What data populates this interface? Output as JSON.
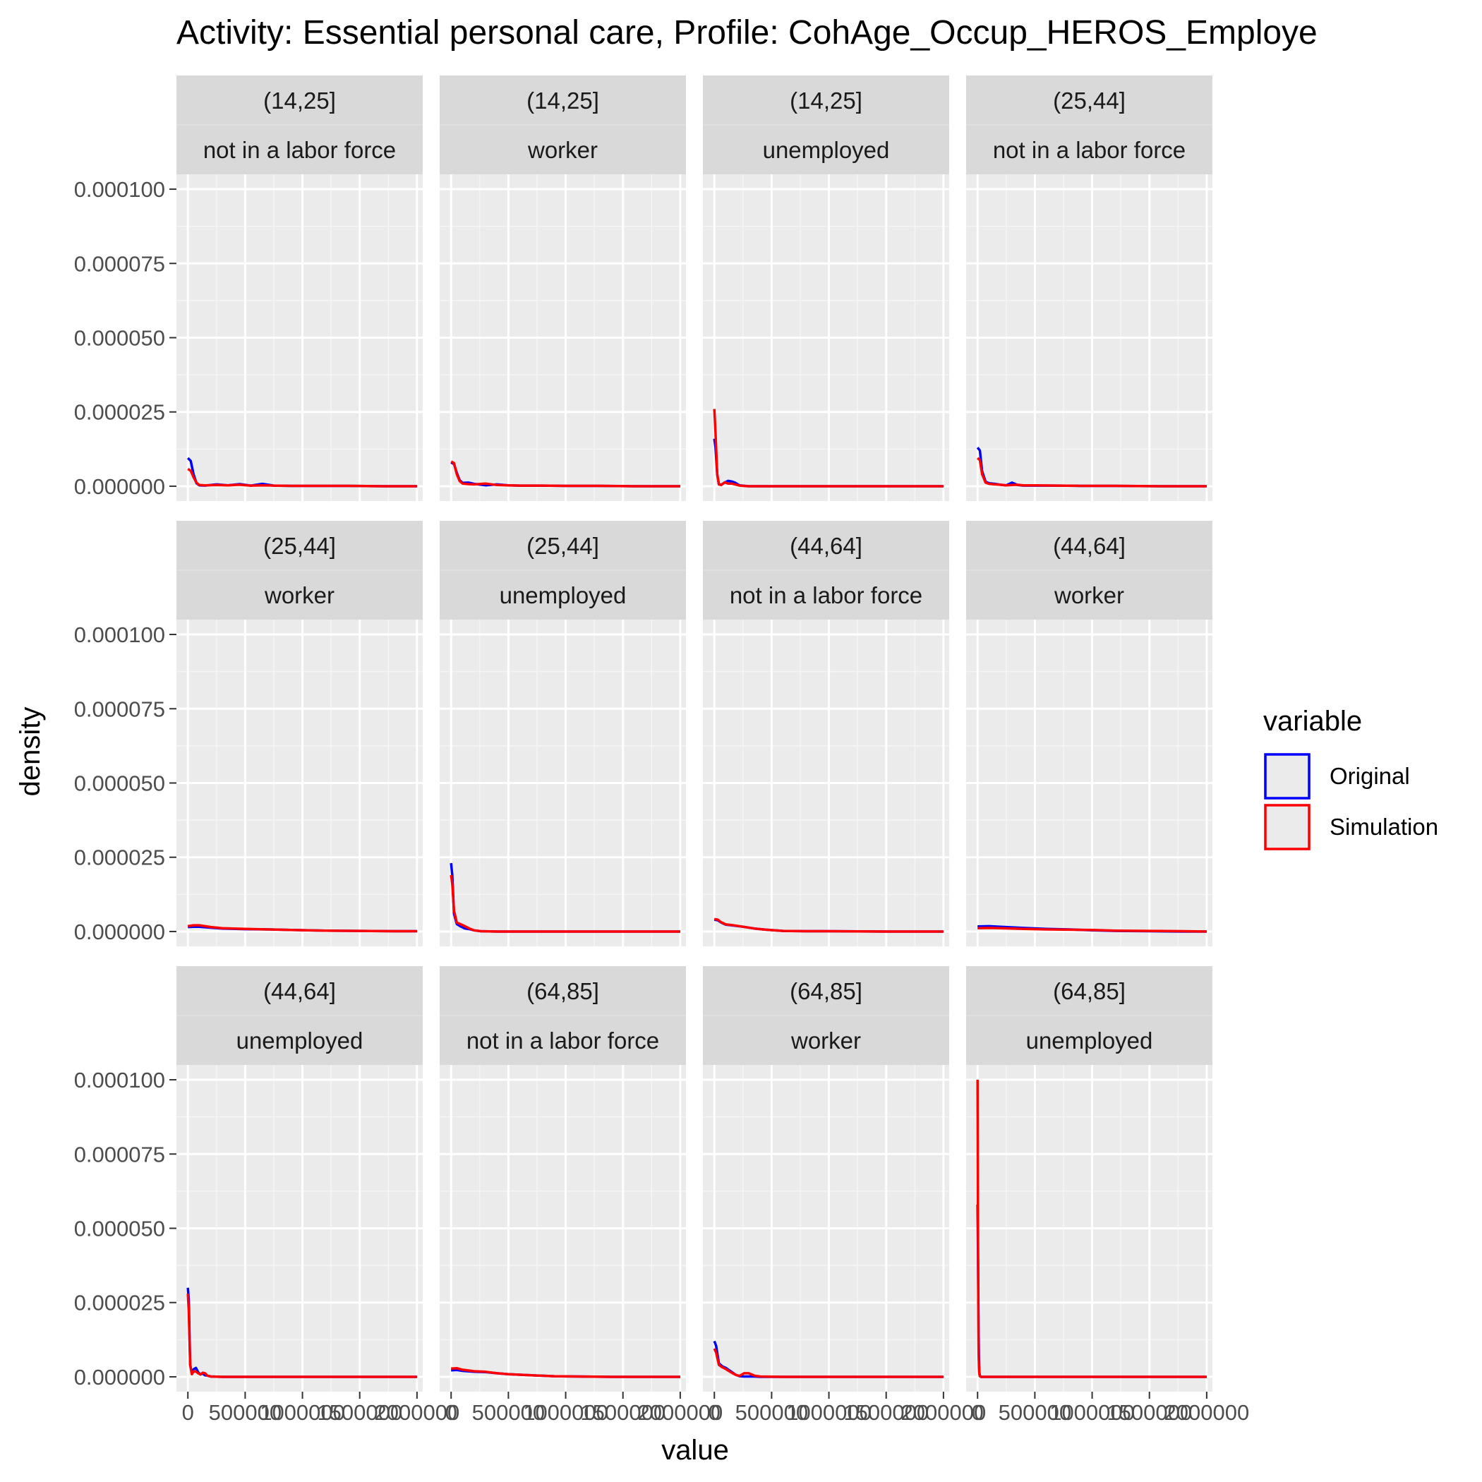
{
  "chart_data": {
    "type": "line",
    "title": "Activity: Essential personal care, Profile: CohAge_Occup_HEROS_Employe",
    "xlabel": "value",
    "ylabel": "density",
    "xlim": [
      -100000,
      2050000
    ],
    "ylim": [
      -5e-06,
      0.000105
    ],
    "x_ticks": [
      0,
      500000,
      1000000,
      1500000,
      2000000
    ],
    "x_tick_labels": [
      "0",
      "500000",
      "1000000",
      "1500000",
      "2000000"
    ],
    "y_ticks": [
      0,
      2.5e-05,
      5e-05,
      7.5e-05,
      0.0001
    ],
    "y_tick_labels": [
      "0.000000",
      "0.000025",
      "0.000050",
      "0.000075",
      "0.000100"
    ],
    "grid": true,
    "legend": {
      "title": "variable",
      "position": "right",
      "entries": [
        {
          "name": "Original",
          "color": "#0000ff"
        },
        {
          "name": "Simulation",
          "color": "#ff0000"
        }
      ]
    },
    "panels": [
      {
        "age": "(14,25]",
        "status": "not in a labor force",
        "series": [
          {
            "name": "Original",
            "x": [
              0,
              25000,
              50000,
              75000,
              100000,
              150000,
              250000,
              350000,
              450000,
              550000,
              650000,
              750000,
              900000,
              1100000,
              1400000,
              1700000,
              2000000
            ],
            "y": [
              9.5e-06,
              8.5e-06,
              4e-06,
              1e-06,
              3e-07,
              2e-07,
              6e-07,
              3e-07,
              7e-07,
              2e-07,
              8e-07,
              2e-07,
              1e-07,
              1e-07,
              1e-07,
              0,
              0
            ]
          },
          {
            "name": "Simulation",
            "x": [
              0,
              25000,
              50000,
              75000,
              100000,
              150000,
              250000,
              350000,
              450000,
              550000,
              650000,
              750000,
              900000,
              1100000,
              1400000,
              1700000,
              2000000
            ],
            "y": [
              5.8e-06,
              5.2e-06,
              3e-06,
              1.2e-06,
              4e-07,
              3e-07,
              4e-07,
              3e-07,
              5e-07,
              2e-07,
              3e-07,
              2e-07,
              1e-07,
              1e-07,
              1e-07,
              0,
              0
            ]
          }
        ]
      },
      {
        "age": "(14,25]",
        "status": "worker",
        "series": [
          {
            "name": "Original",
            "x": [
              0,
              25000,
              50000,
              75000,
              100000,
              150000,
              200000,
              300000,
              400000,
              500000,
              600000,
              800000,
              1000000,
              1300000,
              1600000,
              2000000
            ],
            "y": [
              8e-06,
              7.5e-06,
              4.5e-06,
              2e-06,
              1.1e-06,
              1.2e-06,
              8e-07,
              3e-07,
              6e-07,
              3e-07,
              2e-07,
              2e-07,
              1e-07,
              1e-07,
              0,
              0
            ]
          },
          {
            "name": "Simulation",
            "x": [
              0,
              25000,
              50000,
              75000,
              100000,
              150000,
              200000,
              300000,
              400000,
              500000,
              600000,
              800000,
              1000000,
              1300000,
              1600000,
              2000000
            ],
            "y": [
              8.3e-06,
              7.8e-06,
              4e-06,
              1.7e-06,
              9e-07,
              7e-07,
              6e-07,
              9e-07,
              4e-07,
              3e-07,
              2e-07,
              2e-07,
              1e-07,
              1e-07,
              0,
              0
            ]
          }
        ]
      },
      {
        "age": "(14,25]",
        "status": "unemployed",
        "series": [
          {
            "name": "Original",
            "x": [
              0,
              10000,
              25000,
              40000,
              60000,
              90000,
              120000,
              150000,
              180000,
              220000,
              300000,
              500000,
              1000000,
              1500000,
              2000000
            ],
            "y": [
              1.6e-05,
              1.3e-05,
              4e-06,
              6e-07,
              5e-07,
              1.2e-06,
              1.8e-06,
              1.6e-06,
              1.2e-06,
              3e-07,
              0,
              0,
              0,
              0,
              0
            ]
          },
          {
            "name": "Simulation",
            "x": [
              0,
              10000,
              25000,
              40000,
              60000,
              90000,
              120000,
              150000,
              180000,
              220000,
              300000,
              500000,
              1000000,
              1500000,
              2000000
            ],
            "y": [
              2.6e-05,
              1.8e-05,
              4e-06,
              6e-07,
              4e-07,
              1.3e-06,
              9e-07,
              9e-07,
              6e-07,
              2e-07,
              0,
              0,
              0,
              0,
              0
            ]
          }
        ]
      },
      {
        "age": "(25,44]",
        "status": "not in a labor force",
        "series": [
          {
            "name": "Original",
            "x": [
              0,
              20000,
              40000,
              70000,
              100000,
              150000,
              200000,
              250000,
              300000,
              350000,
              400000,
              500000,
              700000,
              900000,
              1200000,
              1600000,
              2000000
            ],
            "y": [
              1.3e-05,
              1.2e-05,
              5e-06,
              1.5e-06,
              1e-06,
              8e-07,
              5e-07,
              3e-07,
              1.2e-06,
              4e-07,
              2e-07,
              2e-07,
              2e-07,
              1e-07,
              1e-07,
              0,
              0
            ]
          },
          {
            "name": "Simulation",
            "x": [
              0,
              20000,
              40000,
              70000,
              100000,
              150000,
              200000,
              250000,
              300000,
              350000,
              400000,
              500000,
              700000,
              900000,
              1200000,
              1600000,
              2000000
            ],
            "y": [
              9.5e-06,
              8.8e-06,
              4e-06,
              1.2e-06,
              8e-07,
              6e-07,
              5e-07,
              3e-07,
              4e-07,
              5e-07,
              3e-07,
              3e-07,
              2e-07,
              1e-07,
              1e-07,
              0,
              0
            ]
          }
        ]
      },
      {
        "age": "(25,44]",
        "status": "worker",
        "series": [
          {
            "name": "Original",
            "x": [
              0,
              50000,
              100000,
              200000,
              300000,
              500000,
              700000,
              900000,
              1200000,
              1500000,
              1800000,
              2000000
            ],
            "y": [
              1.5e-06,
              1.6e-06,
              1.6e-06,
              1.3e-06,
              1e-06,
              8e-07,
              7e-07,
              5e-07,
              3e-07,
              2e-07,
              1e-07,
              1e-07
            ]
          },
          {
            "name": "Simulation",
            "x": [
              0,
              50000,
              100000,
              200000,
              300000,
              500000,
              700000,
              900000,
              1200000,
              1500000,
              1800000,
              2000000
            ],
            "y": [
              1.8e-06,
              2.1e-06,
              2.1e-06,
              1.5e-06,
              1.1e-06,
              9e-07,
              7e-07,
              5e-07,
              3e-07,
              2e-07,
              1e-07,
              1e-07
            ]
          }
        ]
      },
      {
        "age": "(25,44]",
        "status": "unemployed",
        "series": [
          {
            "name": "Original",
            "x": [
              0,
              10000,
              25000,
              50000,
              80000,
              120000,
              160000,
              200000,
              260000,
              400000,
              1000000,
              1500000,
              2000000
            ],
            "y": [
              2.3e-05,
              1.9e-05,
              6e-06,
              2.5e-06,
              1.8e-06,
              1e-06,
              8e-07,
              4e-07,
              1e-07,
              0,
              0,
              0,
              0
            ]
          },
          {
            "name": "Simulation",
            "x": [
              0,
              10000,
              25000,
              50000,
              80000,
              120000,
              160000,
              200000,
              260000,
              400000,
              1000000,
              1500000,
              2000000
            ],
            "y": [
              1.9e-05,
              1.6e-05,
              7e-06,
              3e-06,
              2.5e-06,
              1.8e-06,
              1e-06,
              4e-07,
              1e-07,
              0,
              0,
              0,
              0
            ]
          }
        ]
      },
      {
        "age": "(44,64]",
        "status": "not in a labor force",
        "series": [
          {
            "name": "Original",
            "x": [
              0,
              30000,
              60000,
              100000,
              150000,
              250000,
              350000,
              450000,
              600000,
              800000,
              1000000,
              1500000,
              2000000
            ],
            "y": [
              4e-06,
              3.8e-06,
              3e-06,
              2.3e-06,
              2.1e-06,
              1.6e-06,
              1e-06,
              6e-07,
              2e-07,
              1e-07,
              1e-07,
              0,
              0
            ]
          },
          {
            "name": "Simulation",
            "x": [
              0,
              30000,
              60000,
              100000,
              150000,
              250000,
              350000,
              450000,
              600000,
              800000,
              1000000,
              1500000,
              2000000
            ],
            "y": [
              4.2e-06,
              4e-06,
              3.1e-06,
              2.4e-06,
              2.2e-06,
              1.6e-06,
              1e-06,
              6e-07,
              2e-07,
              1e-07,
              1e-07,
              0,
              0
            ]
          }
        ]
      },
      {
        "age": "(44,64]",
        "status": "worker",
        "series": [
          {
            "name": "Original",
            "x": [
              0,
              100000,
              200000,
              400000,
              600000,
              800000,
              1000000,
              1200000,
              1500000,
              1800000,
              2000000
            ],
            "y": [
              1.7e-06,
              1.8e-06,
              1.6e-06,
              1.2e-06,
              9e-07,
              7e-07,
              4e-07,
              2e-07,
              1e-07,
              0,
              0
            ]
          },
          {
            "name": "Simulation",
            "x": [
              0,
              100000,
              200000,
              400000,
              600000,
              800000,
              1000000,
              1200000,
              1500000,
              1800000,
              2000000
            ],
            "y": [
              1.1e-06,
              1.2e-06,
              1.1e-06,
              9e-07,
              7e-07,
              6e-07,
              5e-07,
              3e-07,
              2e-07,
              1e-07,
              0
            ]
          }
        ]
      },
      {
        "age": "(44,64]",
        "status": "unemployed",
        "series": [
          {
            "name": "Original",
            "x": [
              0,
              8000,
              20000,
              35000,
              50000,
              70000,
              90000,
              110000,
              130000,
              150000,
              170000,
              200000,
              300000,
              1000000,
              2000000
            ],
            "y": [
              3e-05,
              2.6e-05,
              4e-06,
              1e-06,
              2.5e-06,
              3e-06,
              1.5e-06,
              8e-07,
              1.1e-06,
              5e-07,
              4e-07,
              1e-07,
              0,
              0,
              0
            ]
          },
          {
            "name": "Simulation",
            "x": [
              0,
              8000,
              20000,
              35000,
              50000,
              70000,
              90000,
              110000,
              130000,
              150000,
              170000,
              200000,
              300000,
              1000000,
              2000000
            ],
            "y": [
              2.8e-05,
              2.2e-05,
              4e-06,
              9e-07,
              1.8e-06,
              1.8e-06,
              1.2e-06,
              8e-07,
              1.4e-06,
              1.2e-06,
              4e-07,
              1e-07,
              0,
              0,
              0
            ]
          }
        ]
      },
      {
        "age": "(64,85]",
        "status": "not in a labor force",
        "series": [
          {
            "name": "Original",
            "x": [
              0,
              50000,
              100000,
              200000,
              300000,
              400000,
              500000,
              700000,
              900000,
              1100000,
              1400000,
              1700000,
              2000000
            ],
            "y": [
              2.2e-06,
              2.3e-06,
              2e-06,
              1.7e-06,
              1.6e-06,
              1.2e-06,
              9e-07,
              5e-07,
              2e-07,
              1e-07,
              0,
              0,
              0
            ]
          },
          {
            "name": "Simulation",
            "x": [
              0,
              50000,
              100000,
              200000,
              300000,
              400000,
              500000,
              700000,
              900000,
              1100000,
              1400000,
              1700000,
              2000000
            ],
            "y": [
              2.8e-06,
              2.9e-06,
              2.4e-06,
              1.9e-06,
              1.7e-06,
              1.2e-06,
              9e-07,
              5e-07,
              2e-07,
              1e-07,
              0,
              0,
              0
            ]
          }
        ]
      },
      {
        "age": "(64,85]",
        "status": "worker",
        "series": [
          {
            "name": "Original",
            "x": [
              0,
              15000,
              40000,
              70000,
              100000,
              130000,
              160000,
              190000,
              220000,
              260000,
              300000,
              350000,
              400000,
              600000,
              1000000,
              1500000,
              2000000
            ],
            "y": [
              1.2e-05,
              1.05e-05,
              4.5e-06,
              3.5e-06,
              3e-06,
              2.2e-06,
              1.4e-06,
              6e-07,
              2e-07,
              1e-07,
              1e-07,
              1e-07,
              0,
              0,
              0,
              0,
              0
            ]
          },
          {
            "name": "Simulation",
            "x": [
              0,
              15000,
              40000,
              70000,
              100000,
              130000,
              160000,
              190000,
              220000,
              260000,
              300000,
              350000,
              400000,
              600000,
              1000000,
              1500000,
              2000000
            ],
            "y": [
              9.5e-06,
              8.2e-06,
              4e-06,
              3.2e-06,
              2.6e-06,
              1.9e-06,
              1.2e-06,
              6e-07,
              3e-07,
              1.2e-06,
              1.2e-06,
              4e-07,
              1e-07,
              0,
              0,
              0,
              0
            ]
          }
        ]
      },
      {
        "age": "(64,85]",
        "status": "unemployed",
        "series": [
          {
            "name": "Original",
            "x": [
              0,
              3000,
              6000,
              9000,
              12000,
              15000,
              20000,
              30000,
              50000,
              1000000,
              2000000
            ],
            "y": [
              5.8e-05,
              4.5e-05,
              3e-05,
              1.5e-05,
              6e-06,
              1.5e-06,
              3e-07,
              0,
              0,
              0,
              0
            ]
          },
          {
            "name": "Simulation",
            "x": [
              0,
              3000,
              6000,
              9000,
              12000,
              15000,
              20000,
              30000,
              50000,
              1000000,
              2000000
            ],
            "y": [
              0.0001,
              6e-05,
              2.5e-05,
              8e-06,
              3e-06,
              1e-06,
              2e-07,
              0,
              0,
              0,
              0
            ]
          }
        ]
      }
    ]
  }
}
